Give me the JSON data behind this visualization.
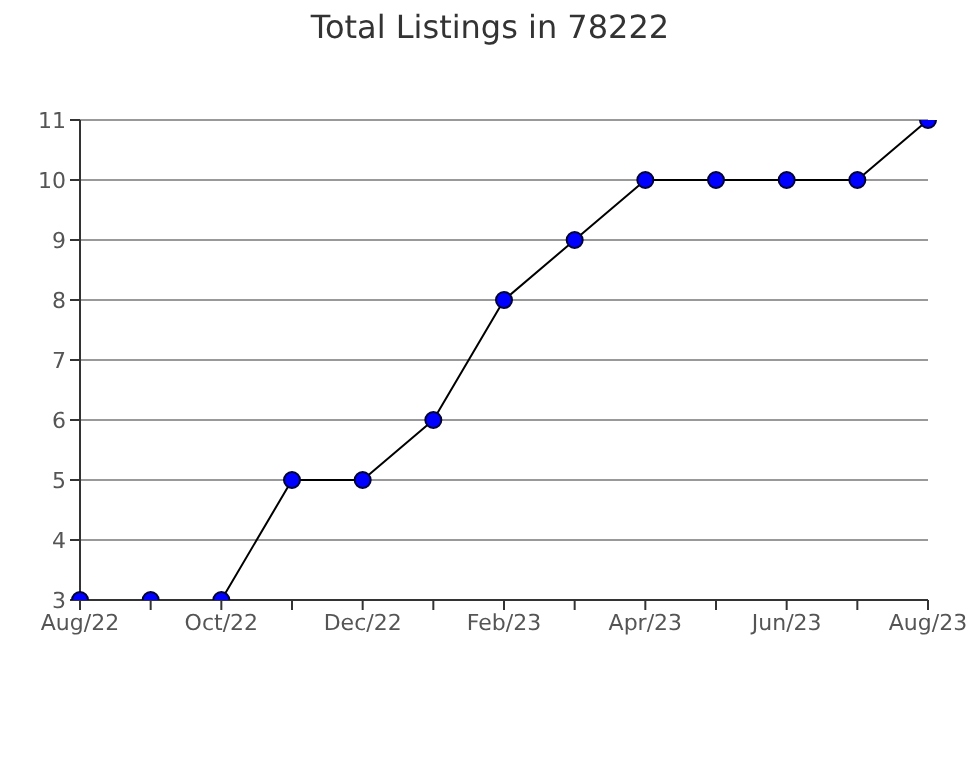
{
  "chart_data": {
    "type": "line",
    "title": "Total Listings in 78222",
    "categories": [
      "Aug/22",
      null,
      "Oct/22",
      null,
      "Dec/22",
      null,
      "Feb/23",
      null,
      "Apr/23",
      null,
      "Jun/23",
      null,
      "Aug/23"
    ],
    "series": [
      {
        "color": "#0000ff",
        "values": [
          3,
          3,
          3,
          5,
          5,
          6,
          8,
          9,
          10,
          10,
          10,
          10,
          11
        ]
      }
    ],
    "ylim": [
      3,
      11
    ],
    "yticks": [
      3,
      4,
      5,
      6,
      7,
      8,
      9,
      10,
      11
    ],
    "grid": "y",
    "marker": "circle",
    "legend": false
  }
}
